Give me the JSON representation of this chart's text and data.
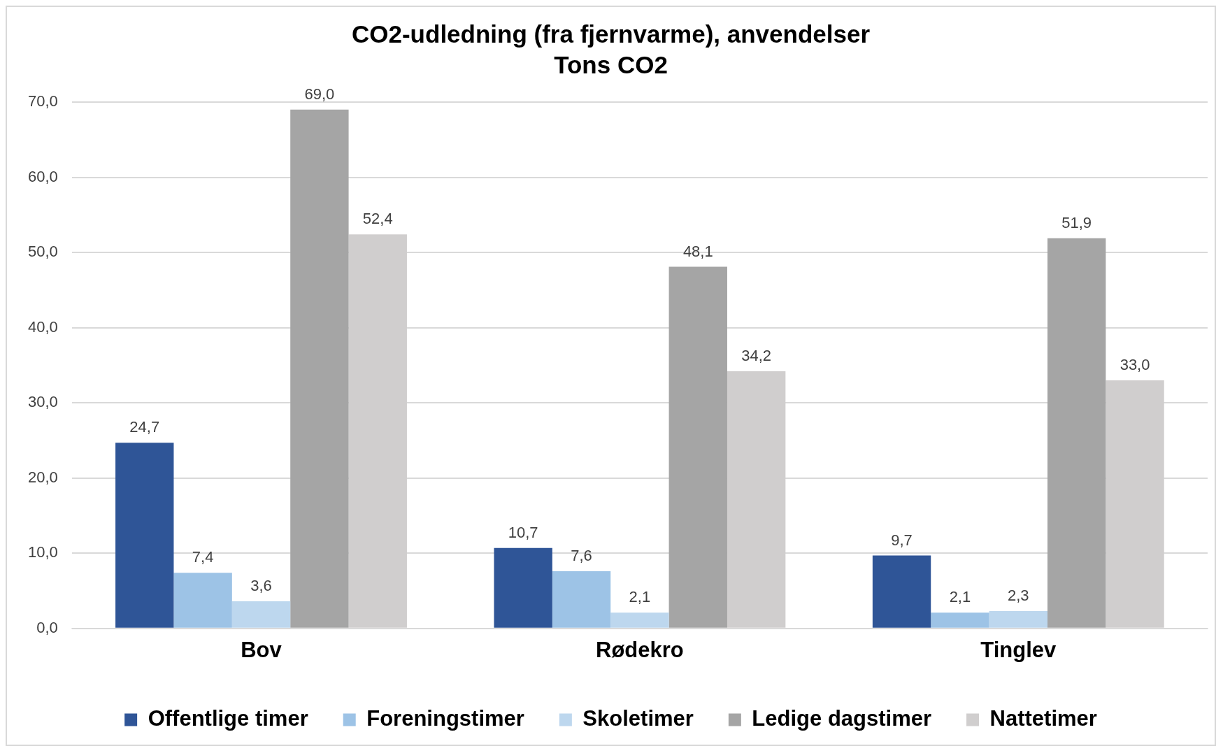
{
  "chart_data": {
    "type": "bar",
    "title": "CO2-udledning (fra fjernvarme), anvendelser",
    "subtitle": "Tons CO2",
    "categories": [
      "Bov",
      "Rødekro",
      "Tinglev"
    ],
    "series": [
      {
        "name": "Offentlige timer",
        "color": "#2f5597",
        "values": [
          24.7,
          10.7,
          9.7
        ],
        "value_labels": [
          "24,7",
          "10,7",
          "9,7"
        ]
      },
      {
        "name": "Foreningstimer",
        "color": "#9dc3e6",
        "values": [
          7.4,
          7.6,
          2.1
        ],
        "value_labels": [
          "7,4",
          "7,6",
          "2,1"
        ]
      },
      {
        "name": "Skoletimer",
        "color": "#bdd7ee",
        "values": [
          3.6,
          2.1,
          2.3
        ],
        "value_labels": [
          "3,6",
          "2,1",
          "2,3"
        ]
      },
      {
        "name": "Ledige dagstimer",
        "color": "#a5a5a5",
        "values": [
          69.0,
          48.1,
          51.9
        ],
        "value_labels": [
          "69,0",
          "48,1",
          "51,9"
        ]
      },
      {
        "name": "Nattetimer",
        "color": "#d0cece",
        "values": [
          52.4,
          34.2,
          33.0
        ],
        "value_labels": [
          "52,4",
          "34,2",
          "33,0"
        ]
      }
    ],
    "ylim": [
      0,
      70
    ],
    "yticks": [
      {
        "value": 0,
        "label": "0,0"
      },
      {
        "value": 10,
        "label": "10,0"
      },
      {
        "value": 20,
        "label": "20,0"
      },
      {
        "value": 30,
        "label": "30,0"
      },
      {
        "value": 40,
        "label": "40,0"
      },
      {
        "value": 50,
        "label": "50,0"
      },
      {
        "value": 60,
        "label": "60,0"
      },
      {
        "value": 70,
        "label": "70,0"
      }
    ],
    "grid": "y",
    "legend": "bottom"
  }
}
